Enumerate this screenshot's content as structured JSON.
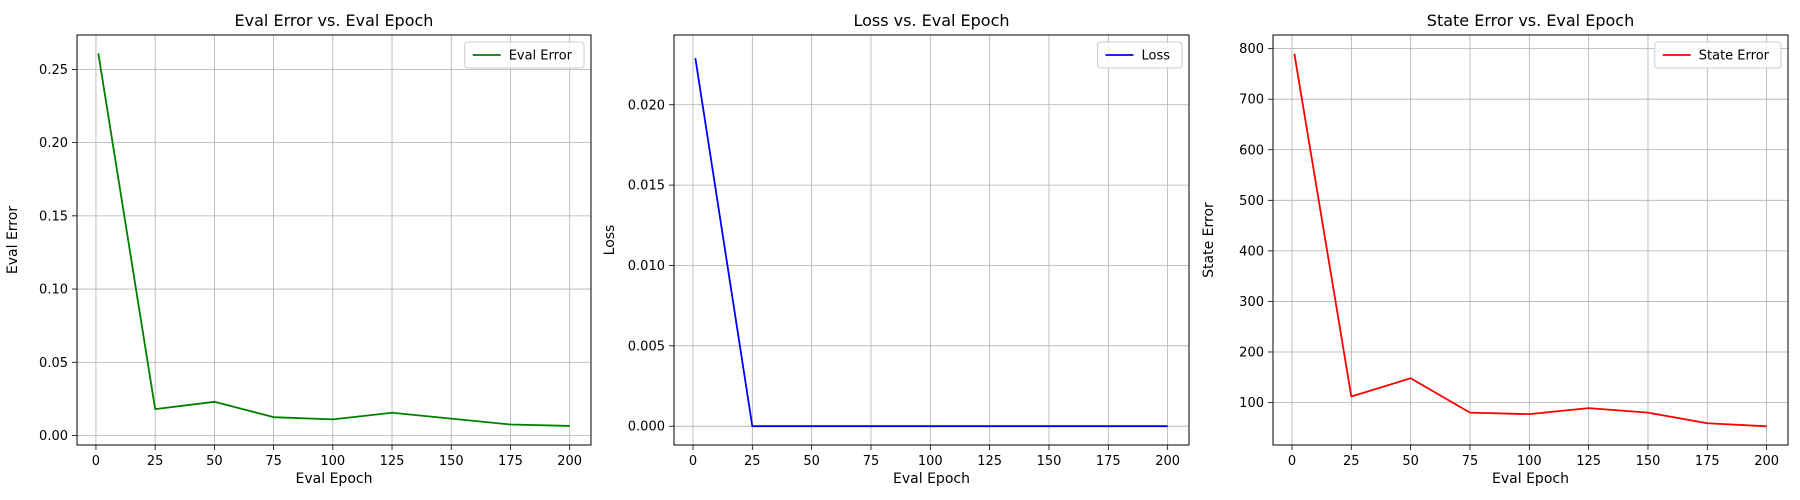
{
  "chart_data": [
    {
      "type": "line",
      "title": "Eval Error vs. Eval Epoch",
      "xlabel": "Eval Epoch",
      "ylabel": "Eval Error",
      "xlim": [
        -8,
        209
      ],
      "ylim": [
        -0.0065,
        0.2735
      ],
      "xticks": [
        "0",
        "25",
        "50",
        "75",
        "100",
        "125",
        "150",
        "175",
        "200"
      ],
      "yticks": [
        "0.00",
        "0.05",
        "0.10",
        "0.15",
        "0.20",
        "0.25"
      ],
      "grid": true,
      "legend_position": "top-right",
      "series": [
        {
          "name": "Eval Error",
          "color": "#008000",
          "x": [
            1,
            25,
            50,
            75,
            100,
            125,
            150,
            175,
            200
          ],
          "y": [
            0.261,
            0.018,
            0.023,
            0.0125,
            0.011,
            0.0155,
            0.0115,
            0.0075,
            0.0065
          ]
        }
      ]
    },
    {
      "type": "line",
      "title": "Loss vs. Eval Epoch",
      "xlabel": "Eval Epoch",
      "ylabel": "Loss",
      "xlim": [
        -8,
        209
      ],
      "ylim": [
        -0.00117,
        0.02434
      ],
      "xticks": [
        "0",
        "25",
        "50",
        "75",
        "100",
        "125",
        "150",
        "175",
        "200"
      ],
      "yticks": [
        "0.000",
        "0.005",
        "0.010",
        "0.015",
        "0.020"
      ],
      "grid": true,
      "legend_position": "top-right",
      "series": [
        {
          "name": "Loss",
          "color": "#0000ff",
          "x": [
            1,
            25,
            50,
            75,
            100,
            125,
            150,
            175,
            200
          ],
          "y": [
            0.0229,
            0.0,
            0.0,
            0.0,
            0.0,
            0.0,
            0.0,
            0.0,
            0.0
          ]
        }
      ]
    },
    {
      "type": "line",
      "title": "State Error vs. Eval Epoch",
      "xlabel": "Eval Epoch",
      "ylabel": "State Error",
      "xlim": [
        -8,
        209
      ],
      "ylim": [
        16,
        827
      ],
      "xticks": [
        "0",
        "25",
        "50",
        "75",
        "100",
        "125",
        "150",
        "175",
        "200"
      ],
      "yticks": [
        "100",
        "200",
        "300",
        "400",
        "500",
        "600",
        "700",
        "800"
      ],
      "grid": true,
      "legend_position": "top-right",
      "series": [
        {
          "name": "State Error",
          "color": "#ff0000",
          "x": [
            1,
            25,
            50,
            75,
            100,
            125,
            150,
            175,
            200
          ],
          "y": [
            790,
            112,
            148,
            80,
            77,
            89,
            80,
            59,
            53
          ]
        }
      ]
    }
  ]
}
